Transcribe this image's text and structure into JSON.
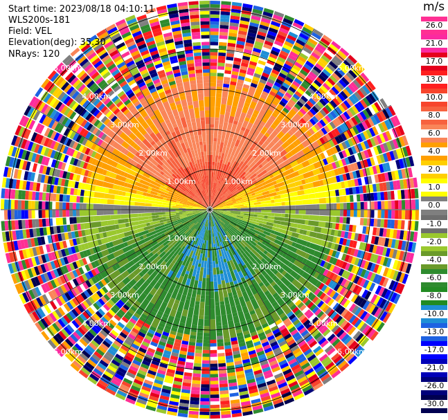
{
  "header": {
    "start_time": "Start time: 2023/08/18 04:10:11",
    "instrument": "WLS200s-181",
    "field": "Field: VEL",
    "elevation": "Elevation(deg): 35.30",
    "nrays": "NRays: 120"
  },
  "colorbar": {
    "unit": "m/s",
    "ticks": [
      "26.0",
      "21.0",
      "17.0",
      "13.0",
      "10.0",
      "8.0",
      "6.0",
      "4.0",
      "2.0",
      "1.0",
      "0.0",
      "-1.0",
      "-2.0",
      "-4.0",
      "-6.0",
      "-8.0",
      "-10.0",
      "-13.0",
      "-17.0",
      "-21.0",
      "-26.0",
      "-30.0"
    ],
    "colors": [
      "#ff2f93",
      "#fb2aa0",
      "#e5001c",
      "#ff1f1f",
      "#f7452c",
      "#f7623f",
      "#f98559",
      "#ff9f00",
      "#ffcf00",
      "#ffff00",
      "#7f7f7f",
      "#6e6e6e",
      "#9ac82e",
      "#6a9a2a",
      "#2e8b2e",
      "#228b22",
      "#1f8fd6",
      "#1e62e2",
      "#0000ff",
      "#0000b8",
      "#00007a",
      "#000050"
    ]
  },
  "chart_data": {
    "type": "heatmap",
    "subtype": "radar-ppi",
    "field": "VEL",
    "n_rays": 120,
    "elevation_deg": 35.3,
    "range_ring_labels": [
      "1.00km",
      "2.00km",
      "3.00km",
      "4.00km",
      "5.00km"
    ],
    "range_rings_km": [
      1,
      2,
      3,
      4,
      5
    ],
    "color_scale_min": -30.0,
    "color_scale_max": 26.0
  }
}
